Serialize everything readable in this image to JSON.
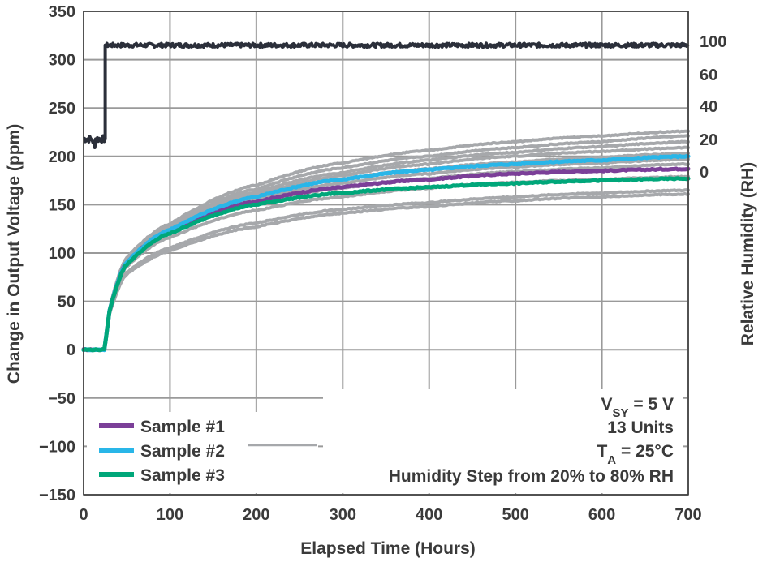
{
  "chart_data": {
    "type": "line",
    "xlabel": "Elapsed Time (Hours)",
    "ylabel": "Change in Output Voltage (ppm)",
    "y2label": "Relative Humidity (RH)",
    "xlim": [
      0,
      700
    ],
    "ylim": [
      -150,
      350
    ],
    "x_ticks": [
      "0",
      "100",
      "200",
      "300",
      "400",
      "500",
      "600",
      "700"
    ],
    "y_ticks": [
      "350",
      "300",
      "250",
      "200",
      "150",
      "100",
      "50",
      "0",
      "−50",
      "−100",
      "−150"
    ],
    "y2_ticks": [
      "100",
      "60",
      "40",
      "20",
      "0"
    ],
    "y2_tick_values": [
      100,
      60,
      40,
      20,
      0
    ],
    "grid": true,
    "legend_position": "bottom-left",
    "colors": {
      "sample1": "#7b3f98",
      "sample2": "#29b6e8",
      "sample3": "#00a77a",
      "other_units": "#a6a8ab",
      "humidity": "#2b2f3a"
    },
    "legend": [
      {
        "label": "Sample #1",
        "color": "#7b3f98"
      },
      {
        "label": "Sample #2",
        "color": "#29b6e8"
      },
      {
        "label": "Sample #3",
        "color": "#00a77a"
      },
      {
        "label": "",
        "color": "#a6a8ab"
      }
    ],
    "annotations": {
      "vsy_main": "V",
      "vsy_sub": "SY",
      "vsy_rest": " = 5 V",
      "units": "13 Units",
      "ta_main": "T",
      "ta_sub": "A",
      "ta_rest": " = 25°C",
      "step": "Humidity Step from 20% to 80% RH"
    },
    "humidity_series": {
      "name": "Relative Humidity",
      "x": [
        0,
        24,
        25,
        700
      ],
      "y_ppm": [
        218,
        218,
        315,
        315
      ]
    },
    "series": [
      {
        "name": "Sample #1",
        "color": "#7b3f98",
        "x": [
          0,
          24,
          30,
          50,
          100,
          200,
          300,
          400,
          500,
          600,
          700
        ],
        "values": [
          0,
          0,
          40,
          90,
          123,
          153,
          168,
          176,
          182,
          185,
          187
        ]
      },
      {
        "name": "Sample #2",
        "color": "#29b6e8",
        "x": [
          0,
          24,
          30,
          50,
          100,
          200,
          300,
          400,
          500,
          600,
          700
        ],
        "values": [
          0,
          0,
          40,
          90,
          124,
          158,
          176,
          186,
          192,
          196,
          200
        ]
      },
      {
        "name": "Sample #3",
        "color": "#00a77a",
        "x": [
          0,
          24,
          30,
          50,
          100,
          200,
          300,
          400,
          500,
          600,
          700
        ],
        "values": [
          0,
          0,
          40,
          88,
          120,
          150,
          162,
          168,
          172,
          175,
          177
        ]
      },
      {
        "name": "",
        "color": "#a6a8ab",
        "x": [
          0,
          24,
          30,
          50,
          100,
          200,
          300,
          400,
          500,
          600,
          700
        ],
        "values": [
          0,
          0,
          42,
          95,
          130,
          170,
          193,
          206,
          215,
          221,
          226
        ]
      },
      {
        "name": "",
        "color": "#a6a8ab",
        "x": [
          0,
          24,
          30,
          50,
          100,
          200,
          300,
          400,
          500,
          600,
          700
        ],
        "values": [
          0,
          0,
          42,
          94,
          128,
          166,
          188,
          200,
          209,
          215,
          221
        ]
      },
      {
        "name": "",
        "color": "#a6a8ab",
        "x": [
          0,
          24,
          30,
          50,
          100,
          200,
          300,
          400,
          500,
          600,
          700
        ],
        "values": [
          0,
          0,
          41,
          93,
          127,
          163,
          183,
          196,
          204,
          210,
          215
        ]
      },
      {
        "name": "",
        "color": "#a6a8ab",
        "x": [
          0,
          24,
          30,
          50,
          100,
          200,
          300,
          400,
          500,
          600,
          700
        ],
        "values": [
          0,
          0,
          41,
          92,
          126,
          160,
          180,
          192,
          200,
          205,
          209
        ]
      },
      {
        "name": "",
        "color": "#a6a8ab",
        "x": [
          0,
          24,
          30,
          50,
          100,
          200,
          300,
          400,
          500,
          600,
          700
        ],
        "values": [
          0,
          0,
          41,
          91,
          125,
          158,
          176,
          187,
          194,
          199,
          203
        ]
      },
      {
        "name": "",
        "color": "#a6a8ab",
        "x": [
          0,
          24,
          30,
          50,
          100,
          200,
          300,
          400,
          500,
          600,
          700
        ],
        "values": [
          0,
          0,
          40,
          90,
          123,
          155,
          172,
          182,
          189,
          193,
          197
        ]
      },
      {
        "name": "",
        "color": "#a6a8ab",
        "x": [
          0,
          24,
          30,
          50,
          100,
          200,
          300,
          400,
          500,
          600,
          700
        ],
        "values": [
          0,
          0,
          40,
          89,
          121,
          151,
          167,
          177,
          184,
          188,
          192
        ]
      },
      {
        "name": "",
        "color": "#a6a8ab",
        "x": [
          0,
          24,
          30,
          50,
          100,
          200,
          300,
          400,
          500,
          600,
          700
        ],
        "values": [
          0,
          0,
          39,
          86,
          116,
          144,
          158,
          167,
          173,
          176,
          179
        ]
      },
      {
        "name": "",
        "color": "#a6a8ab",
        "x": [
          0,
          24,
          30,
          50,
          100,
          200,
          300,
          400,
          500,
          600,
          700
        ],
        "values": [
          0,
          0,
          38,
          80,
          105,
          131,
          145,
          152,
          158,
          162,
          165
        ]
      },
      {
        "name": "",
        "color": "#a6a8ab",
        "x": [
          0,
          24,
          30,
          50,
          100,
          200,
          300,
          400,
          500,
          600,
          700
        ],
        "values": [
          0,
          0,
          37,
          78,
          102,
          127,
          141,
          148,
          154,
          158,
          161
        ]
      }
    ]
  }
}
